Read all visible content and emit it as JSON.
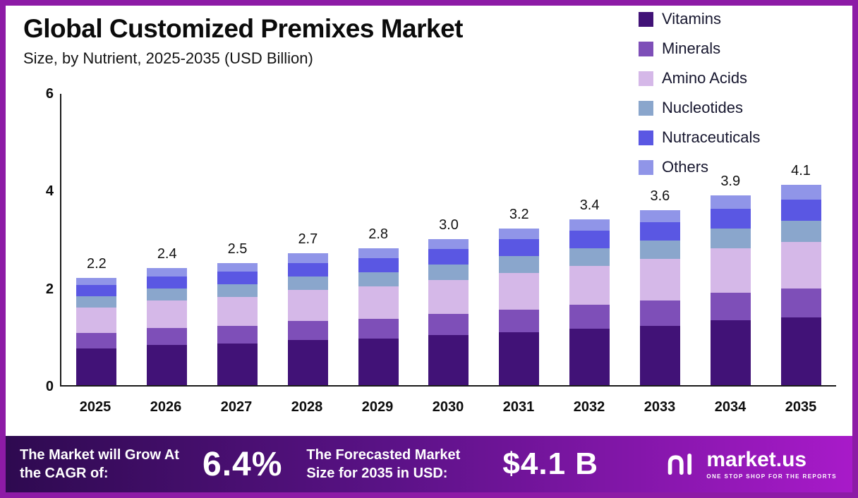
{
  "chart_data": {
    "type": "bar",
    "stacked": true,
    "title": "Global Customized Premixes Market",
    "subtitle": "Size, by Nutrient, 2025-2035 (USD Billion)",
    "categories": [
      "2025",
      "2026",
      "2027",
      "2028",
      "2029",
      "2030",
      "2031",
      "2032",
      "2033",
      "2034",
      "2035"
    ],
    "totals": [
      2.2,
      2.4,
      2.5,
      2.7,
      2.8,
      3.0,
      3.2,
      3.4,
      3.6,
      3.9,
      4.1
    ],
    "series": [
      {
        "name": "Vitamins",
        "color": "#411277",
        "values": [
          0.75,
          0.82,
          0.85,
          0.92,
          0.95,
          1.02,
          1.09,
          1.16,
          1.22,
          1.33,
          1.39
        ]
      },
      {
        "name": "Minerals",
        "color": "#7e4fb8",
        "values": [
          0.32,
          0.35,
          0.36,
          0.39,
          0.41,
          0.44,
          0.46,
          0.49,
          0.52,
          0.57,
          0.59
        ]
      },
      {
        "name": "Amino Acids",
        "color": "#d5b8e8",
        "values": [
          0.52,
          0.56,
          0.59,
          0.63,
          0.66,
          0.7,
          0.75,
          0.8,
          0.85,
          0.91,
          0.96
        ]
      },
      {
        "name": "Nucleotides",
        "color": "#8aa6cc",
        "values": [
          0.23,
          0.25,
          0.26,
          0.28,
          0.29,
          0.32,
          0.34,
          0.36,
          0.38,
          0.41,
          0.43
        ]
      },
      {
        "name": "Nutraceuticals",
        "color": "#5a57e3",
        "values": [
          0.23,
          0.25,
          0.26,
          0.28,
          0.29,
          0.32,
          0.34,
          0.36,
          0.38,
          0.41,
          0.43
        ]
      },
      {
        "name": "Others",
        "color": "#9095e8",
        "values": [
          0.15,
          0.17,
          0.18,
          0.2,
          0.2,
          0.2,
          0.22,
          0.23,
          0.25,
          0.27,
          0.3
        ]
      }
    ],
    "ylim": [
      0,
      6
    ],
    "yticks": [
      0,
      2,
      4,
      6
    ],
    "legend_position": "top-right",
    "grid": false,
    "value_label_decimals": 1
  },
  "footer": {
    "cagr_label": "The Market will Grow At the CAGR of:",
    "cagr_value": "6.4%",
    "forecast_label": "The Forecasted Market Size for 2035 in USD:",
    "forecast_value": "$4.1 B",
    "brand_name": "market.us",
    "brand_tagline": "ONE STOP SHOP FOR THE REPORTS"
  },
  "colors": {
    "border": "#8d1ba6",
    "banner_gradient": [
      "#2e0a50 0%",
      "#5a1286 45%",
      "#a81ac9 100%"
    ]
  }
}
